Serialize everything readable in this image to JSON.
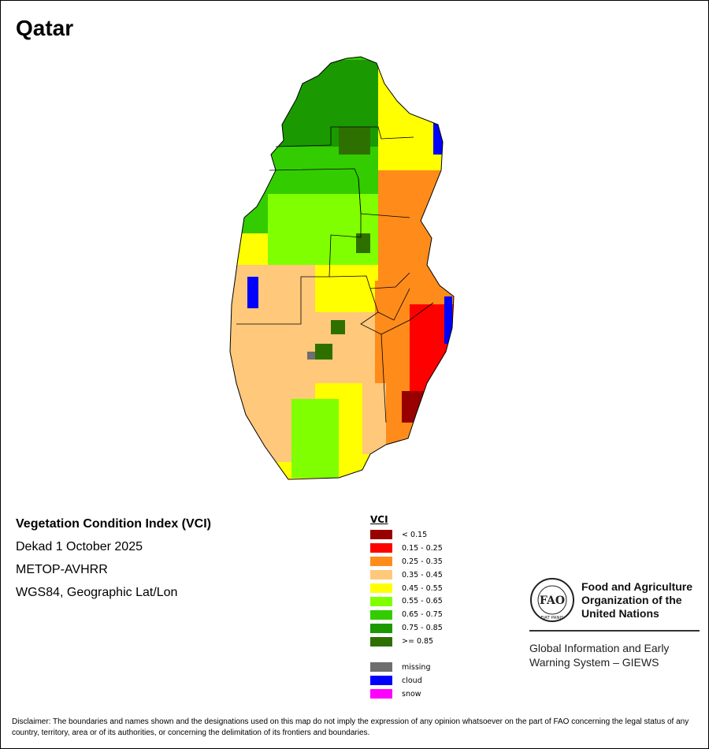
{
  "map": {
    "country": "Qatar",
    "product_title": "Vegetation Condition Index (VCI)",
    "period": "Dekad 1 October 2025",
    "sensor": "METOP-AVHRR",
    "projection": "WGS84, Geographic Lat/Lon"
  },
  "legend": {
    "heading": "VCI",
    "classes": [
      {
        "label": "< 0.15",
        "color": "#990000"
      },
      {
        "label": "0.15 - 0.25",
        "color": "#ff0000"
      },
      {
        "label": "0.25 - 0.35",
        "color": "#ff8c1a"
      },
      {
        "label": "0.35 - 0.45",
        "color": "#ffc87a"
      },
      {
        "label": "0.45 - 0.55",
        "color": "#ffff00"
      },
      {
        "label": "0.55 - 0.65",
        "color": "#80ff00"
      },
      {
        "label": "0.65 - 0.75",
        "color": "#33cc00"
      },
      {
        "label": "0.75 - 0.85",
        "color": "#1a9900"
      },
      {
        "label": ">= 0.85",
        "color": "#2d7000"
      }
    ],
    "special": [
      {
        "label": "missing",
        "color": "#6e6e6e"
      },
      {
        "label": "cloud",
        "color": "#0000ff"
      },
      {
        "label": "snow",
        "color": "#ff00ff"
      }
    ]
  },
  "organization": {
    "name_line1": "Food and Agriculture",
    "name_line2": "Organization of the",
    "name_line3": "United Nations",
    "logo_text": "FAO",
    "logo_motto": "FIAT PANIS",
    "system_line1": "Global Information and Early",
    "system_line2": "Warning System – GIEWS"
  },
  "disclaimer": "Disclaimer: The boundaries and names shown and the designations used on this map do not imply the expression of any opinion whatsoever on the part of FAO concerning the legal status of any country, territory, area or of its authorities, or concerning the delimitation of its frontiers and boundaries."
}
